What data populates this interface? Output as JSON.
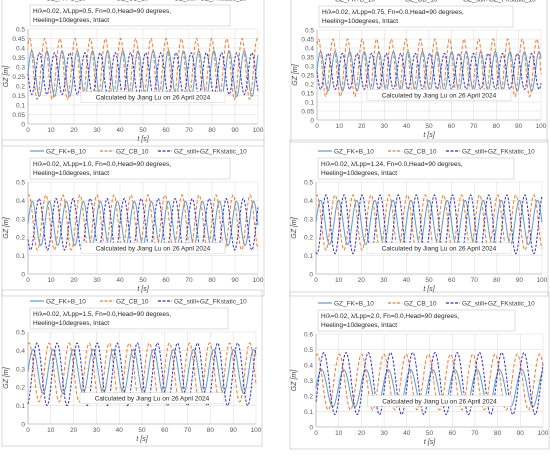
{
  "legend_labels": [
    "GZ_FK+B_10",
    "GZ_CB_10",
    "GZ_still+GZ_FKstatic_10"
  ],
  "series_colors": [
    "#5b9bd5",
    "#ed7d31",
    "#3b2fb8"
  ],
  "credit": "Calculated by Jiang Lu on 26  April 2024",
  "xlabel": "t [s]",
  "ylabel": "GZ [m]",
  "chart_data": [
    {
      "type": "line",
      "info_line1": "H/λ=0.02, λ/Lpp=0.5, Fn=0.0,Head=90 degrees,",
      "info_line2": "Heeling=10degrees, Intact",
      "xlim": [
        0,
        100
      ],
      "xticks": [
        0,
        10,
        20,
        30,
        40,
        50,
        60,
        70,
        80,
        90,
        100
      ],
      "ylim": [
        0,
        0.5
      ],
      "yticks": [
        0,
        0.05,
        0.1,
        0.15,
        0.2,
        0.25,
        0.3,
        0.35,
        0.4,
        0.45,
        0.5
      ],
      "period_s": 6.6,
      "series": [
        {
          "name": "GZ_FK+B_10",
          "style": "solid",
          "mean": 0.265,
          "amplitude": 0.12,
          "phase": 0.0
        },
        {
          "name": "GZ_CB_10",
          "style": "dashed",
          "mean": 0.29,
          "amplitude": 0.16,
          "phase": 0.15
        },
        {
          "name": "GZ_still+GZ_FKstatic_10",
          "style": "dashed",
          "mean": 0.265,
          "amplitude": 0.11,
          "phase": 0.5
        }
      ]
    },
    {
      "type": "line",
      "info_line1": "H/λ=0.02, λ/Lpp=0.75, Fn=0.0,Head=90 degrees,",
      "info_line2": "Heeling=10degrees, Intact",
      "xlim": [
        0,
        100
      ],
      "xticks": [
        0,
        10,
        20,
        30,
        40,
        50,
        60,
        70,
        80,
        90,
        100
      ],
      "ylim": [
        0,
        0.5
      ],
      "yticks": [
        0,
        0.05,
        0.1,
        0.15,
        0.2,
        0.25,
        0.3,
        0.35,
        0.4,
        0.45,
        0.5
      ],
      "period_s": 6.5,
      "series": [
        {
          "name": "GZ_FK+B_10",
          "style": "solid",
          "mean": 0.27,
          "amplitude": 0.11,
          "phase": 0.0
        },
        {
          "name": "GZ_CB_10",
          "style": "dashed",
          "mean": 0.29,
          "amplitude": 0.16,
          "phase": 0.15
        },
        {
          "name": "GZ_still+GZ_FKstatic_10",
          "style": "dashed",
          "mean": 0.27,
          "amplitude": 0.1,
          "phase": 0.5
        }
      ]
    },
    {
      "type": "line",
      "info_line1": "H/λ=0.02, λ/Lpp=1.0, Fn=0.0,Head=90 degrees,",
      "info_line2": "Heeling=10degrees, Intact",
      "xlim": [
        0,
        100
      ],
      "xticks": [
        0,
        10,
        20,
        30,
        40,
        50,
        60,
        70,
        80,
        90,
        100
      ],
      "ylim": [
        0,
        0.5
      ],
      "yticks": [
        0,
        0.1,
        0.2,
        0.3,
        0.4,
        0.5
      ],
      "period_s": 7.4,
      "series": [
        {
          "name": "GZ_FK+B_10",
          "style": "solid",
          "mean": 0.275,
          "amplitude": 0.12,
          "phase": 0.0
        },
        {
          "name": "GZ_CB_10",
          "style": "dashed",
          "mean": 0.28,
          "amplitude": 0.15,
          "phase": 0.2
        },
        {
          "name": "GZ_still+GZ_FKstatic_10",
          "style": "dashed",
          "mean": 0.27,
          "amplitude": 0.14,
          "phase": 0.6
        }
      ]
    },
    {
      "type": "line",
      "info_line1": "H/λ=0.02, λ/Lpp=1.24, Fn=0.0,Head=90 degrees,",
      "info_line2": "Heeling=10degrees, Intact",
      "xlim": [
        0,
        100
      ],
      "xticks": [
        0,
        10,
        20,
        30,
        40,
        50,
        60,
        70,
        80,
        90,
        100
      ],
      "ylim": [
        0,
        0.5
      ],
      "yticks": [
        0,
        0.1,
        0.2,
        0.3,
        0.4,
        0.5
      ],
      "period_s": 8.0,
      "series": [
        {
          "name": "GZ_FK+B_10",
          "style": "solid",
          "mean": 0.28,
          "amplitude": 0.12,
          "phase": 0.0
        },
        {
          "name": "GZ_CB_10",
          "style": "dashed",
          "mean": 0.28,
          "amplitude": 0.15,
          "phase": 0.2
        },
        {
          "name": "GZ_still+GZ_FKstatic_10",
          "style": "dashed",
          "mean": 0.27,
          "amplitude": 0.16,
          "phase": 0.7
        }
      ]
    },
    {
      "type": "line",
      "info_line1": "H/λ=0.02, λ/Lpp=1.5, Fn=0.0,Head=90 degrees,",
      "info_line2": "Heeling=10degrees, Intact",
      "xlim": [
        0,
        100
      ],
      "xticks": [
        0,
        10,
        20,
        30,
        40,
        50,
        60,
        70,
        80,
        90,
        100
      ],
      "ylim": [
        0,
        0.5
      ],
      "yticks": [
        0,
        0.1,
        0.2,
        0.3,
        0.4,
        0.5
      ],
      "period_s": 8.8,
      "series": [
        {
          "name": "GZ_FK+B_10",
          "style": "solid",
          "mean": 0.285,
          "amplitude": 0.12,
          "phase": 0.0
        },
        {
          "name": "GZ_CB_10",
          "style": "dashed",
          "mean": 0.28,
          "amplitude": 0.16,
          "phase": 0.2
        },
        {
          "name": "GZ_still+GZ_FKstatic_10",
          "style": "dashed",
          "mean": 0.27,
          "amplitude": 0.17,
          "phase": 0.8
        }
      ]
    },
    {
      "type": "line",
      "info_line1": "H/λ=0.02, λ/Lpp=2.0, Fn=0.0,Head=90 degrees,",
      "info_line2": "Heeling=10degrees, Intact",
      "xlim": [
        0,
        100
      ],
      "xticks": [
        0,
        10,
        20,
        30,
        40,
        50,
        60,
        70,
        80,
        90,
        100
      ],
      "ylim": [
        0,
        0.6
      ],
      "yticks": [
        0,
        0.1,
        0.2,
        0.3,
        0.4,
        0.5,
        0.6
      ],
      "period_s": 9.8,
      "series": [
        {
          "name": "GZ_FK+B_10",
          "style": "solid",
          "mean": 0.25,
          "amplitude": 0.12,
          "phase": 0.0
        },
        {
          "name": "GZ_CB_10",
          "style": "dashed",
          "mean": 0.29,
          "amplitude": 0.18,
          "phase": 0.2
        },
        {
          "name": "GZ_still+GZ_FKstatic_10",
          "style": "dashed",
          "mean": 0.28,
          "amplitude": 0.2,
          "phase": 0.9
        }
      ]
    }
  ]
}
